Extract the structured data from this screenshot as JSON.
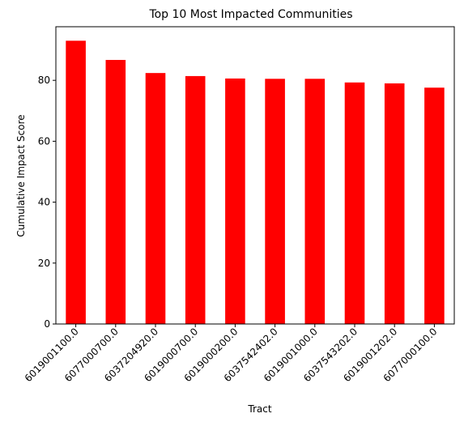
{
  "chart_data": {
    "type": "bar",
    "title": "Top 10 Most Impacted Communities",
    "xlabel": "Tract",
    "ylabel": "Cumulative Impact Score",
    "categories": [
      "6019001100.0",
      "6077000700.0",
      "6037204920.0",
      "6019000700.0",
      "6019000200.0",
      "6037542402.0",
      "6019001000.0",
      "6037543202.0",
      "6019001202.0",
      "6077000100.0"
    ],
    "values": [
      93.0,
      86.7,
      82.4,
      81.4,
      80.6,
      80.5,
      80.5,
      79.3,
      79.0,
      77.6
    ],
    "ylim": [
      0,
      97.6
    ],
    "yticks": [
      0,
      20,
      40,
      60,
      80
    ],
    "bar_color": "#ff0000",
    "grid": false,
    "legend": "none"
  }
}
